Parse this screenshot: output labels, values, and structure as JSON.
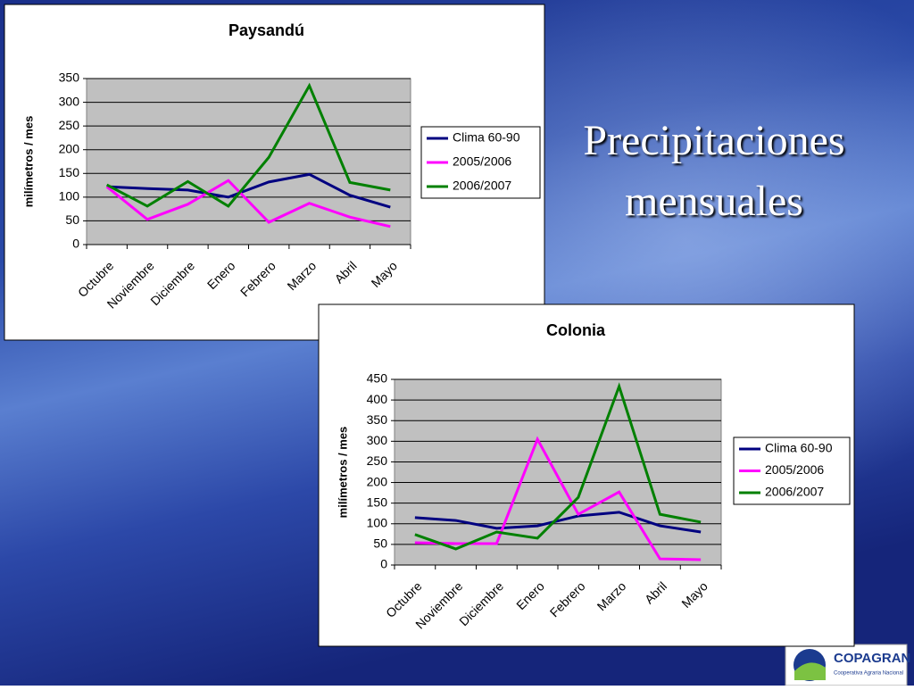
{
  "slide_title": [
    "Precipitaciones",
    "mensuales"
  ],
  "logo": {
    "name": "COPAGRAN",
    "subtitle": "Cooperativa Agraria Nacional"
  },
  "chart_data": [
    {
      "type": "line",
      "title": "Paysandú",
      "y_label": "milímetros / mes",
      "categories": [
        "Octubre",
        "Noviembre",
        "Diciembre",
        "Enero",
        "Febrero",
        "Marzo",
        "Abril",
        "Mayo"
      ],
      "series": [
        {
          "name": "Clima 60-90",
          "color": "#000080",
          "values": [
            122,
            118,
            115,
            100,
            132,
            148,
            104,
            79
          ]
        },
        {
          "name": "2005/2006",
          "color": "#ff00ff",
          "values": [
            122,
            53,
            85,
            135,
            47,
            87,
            58,
            38
          ]
        },
        {
          "name": "2006/2007",
          "color": "#008000",
          "values": [
            126,
            81,
            133,
            81,
            184,
            335,
            131,
            115
          ]
        }
      ],
      "ylim": [
        0,
        350
      ],
      "yticks": [
        0,
        50,
        100,
        150,
        200,
        250,
        300,
        350
      ],
      "grid": true,
      "legend": "right"
    },
    {
      "type": "line",
      "title": "Colonia",
      "y_label": "milímetros / mes",
      "categories": [
        "Octubre",
        "Noviembre",
        "Diciembre",
        "Enero",
        "Febrero",
        "Marzo",
        "Abril",
        "Mayo"
      ],
      "series": [
        {
          "name": "Clima 60-90",
          "color": "#000080",
          "values": [
            115,
            108,
            89,
            95,
            119,
            128,
            95,
            80
          ]
        },
        {
          "name": "2005/2006",
          "color": "#ff00ff",
          "values": [
            54,
            52,
            52,
            305,
            123,
            177,
            15,
            13
          ]
        },
        {
          "name": "2006/2007",
          "color": "#008000",
          "values": [
            74,
            39,
            80,
            65,
            164,
            433,
            123,
            104
          ]
        }
      ],
      "ylim": [
        0,
        450
      ],
      "yticks": [
        0,
        50,
        100,
        150,
        200,
        250,
        300,
        350,
        400,
        450
      ],
      "grid": true,
      "legend": "right"
    }
  ]
}
